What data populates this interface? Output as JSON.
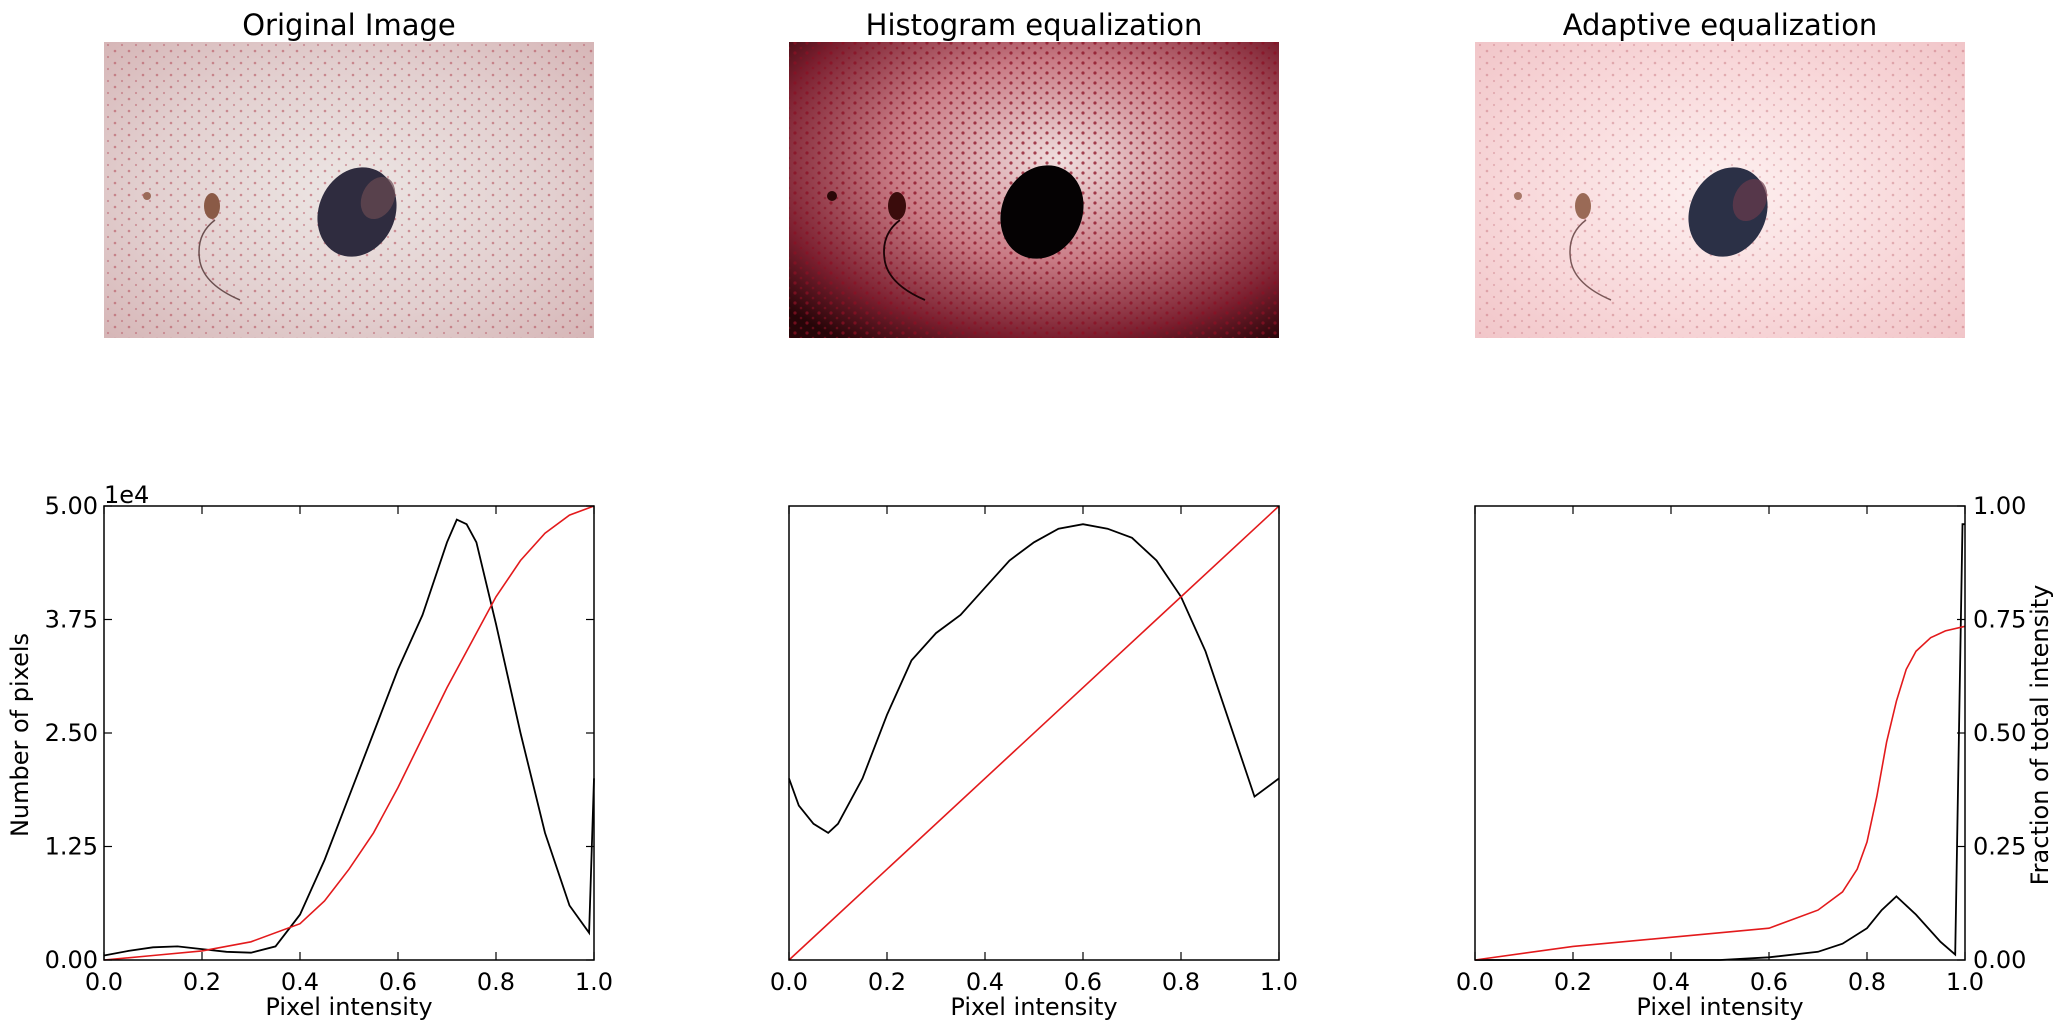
{
  "figure": {
    "panels": [
      {
        "title": "Original Image",
        "image_icon": "skin-lesion-photo-original-icon"
      },
      {
        "title": "Histogram equalization",
        "image_icon": "skin-lesion-photo-equalized-icon"
      },
      {
        "title": "Adaptive equalization",
        "image_icon": "skin-lesion-photo-adaptive-icon"
      }
    ]
  },
  "chart_data": [
    {
      "type": "line",
      "panel": "Original Image",
      "xlabel": "Pixel intensity",
      "ylabel": "Number of pixels",
      "y_offset_text": "1e4",
      "xlim": [
        0,
        1
      ],
      "ylim": [
        0,
        50000
      ],
      "x_ticks": [
        "0.0",
        "0.2",
        "0.4",
        "0.6",
        "0.8",
        "1.0"
      ],
      "y_ticks": [
        "0.00",
        "1.25",
        "2.50",
        "3.75",
        "5.00"
      ],
      "series": [
        {
          "role": "histogram",
          "color": "#000000",
          "x": [
            0,
            0.05,
            0.1,
            0.15,
            0.2,
            0.25,
            0.3,
            0.35,
            0.4,
            0.45,
            0.5,
            0.55,
            0.6,
            0.65,
            0.7,
            0.72,
            0.74,
            0.76,
            0.8,
            0.85,
            0.9,
            0.95,
            0.99,
            1.0
          ],
          "y": [
            500,
            1000,
            1400,
            1500,
            1200,
            900,
            800,
            1500,
            5000,
            11000,
            18000,
            25000,
            32000,
            38000,
            46000,
            48500,
            48000,
            46000,
            37000,
            25000,
            14000,
            6000,
            3000,
            20000
          ]
        },
        {
          "role": "cdf",
          "color": "#e31a1c",
          "axis": "fraction",
          "x": [
            0,
            0.1,
            0.2,
            0.3,
            0.4,
            0.45,
            0.5,
            0.55,
            0.6,
            0.65,
            0.7,
            0.75,
            0.8,
            0.85,
            0.9,
            0.95,
            1.0
          ],
          "y": [
            0,
            0.01,
            0.02,
            0.04,
            0.08,
            0.13,
            0.2,
            0.28,
            0.38,
            0.49,
            0.6,
            0.7,
            0.8,
            0.88,
            0.94,
            0.98,
            1.0
          ]
        }
      ]
    },
    {
      "type": "line",
      "panel": "Histogram equalization",
      "xlabel": "Pixel intensity",
      "xlim": [
        0,
        1
      ],
      "ylim": [
        0,
        50000
      ],
      "x_ticks": [
        "0.0",
        "0.2",
        "0.4",
        "0.6",
        "0.8",
        "1.0"
      ],
      "series": [
        {
          "role": "histogram",
          "color": "#000000",
          "x": [
            0,
            0.02,
            0.05,
            0.08,
            0.1,
            0.15,
            0.2,
            0.25,
            0.3,
            0.35,
            0.4,
            0.45,
            0.5,
            0.55,
            0.6,
            0.65,
            0.7,
            0.75,
            0.8,
            0.85,
            0.9,
            0.95,
            1.0
          ],
          "y": [
            20000,
            17000,
            15000,
            14000,
            15000,
            20000,
            27000,
            33000,
            36000,
            38000,
            41000,
            44000,
            46000,
            47500,
            48000,
            47500,
            46500,
            44000,
            40000,
            34000,
            26000,
            18000,
            20000
          ]
        },
        {
          "role": "cdf",
          "color": "#e31a1c",
          "axis": "fraction",
          "x": [
            0,
            1
          ],
          "y": [
            0,
            1
          ]
        }
      ]
    },
    {
      "type": "line",
      "panel": "Adaptive equalization",
      "xlabel": "Pixel intensity",
      "ylabel_right": "Fraction of total intensity",
      "xlim": [
        0,
        1
      ],
      "ylim_right": [
        0,
        1
      ],
      "x_ticks": [
        "0.0",
        "0.2",
        "0.4",
        "0.6",
        "0.8",
        "1.0"
      ],
      "y_ticks_right": [
        "0.00",
        "0.25",
        "0.50",
        "0.75",
        "1.00"
      ],
      "series": [
        {
          "role": "histogram",
          "color": "#000000",
          "x": [
            0,
            0.5,
            0.6,
            0.7,
            0.75,
            0.8,
            0.83,
            0.86,
            0.9,
            0.95,
            0.98,
            0.995,
            1.0
          ],
          "y": [
            0,
            0,
            300,
            900,
            1800,
            3500,
            5500,
            7000,
            5000,
            2000,
            600,
            48000,
            48000
          ]
        },
        {
          "role": "cdf",
          "color": "#e31a1c",
          "axis": "fraction",
          "x": [
            0,
            0.2,
            0.4,
            0.6,
            0.7,
            0.75,
            0.78,
            0.8,
            0.82,
            0.84,
            0.86,
            0.88,
            0.9,
            0.93,
            0.96,
            1.0
          ],
          "y": [
            0,
            0.03,
            0.05,
            0.07,
            0.11,
            0.15,
            0.2,
            0.26,
            0.36,
            0.48,
            0.57,
            0.64,
            0.68,
            0.71,
            0.725,
            0.735
          ]
        }
      ]
    }
  ]
}
